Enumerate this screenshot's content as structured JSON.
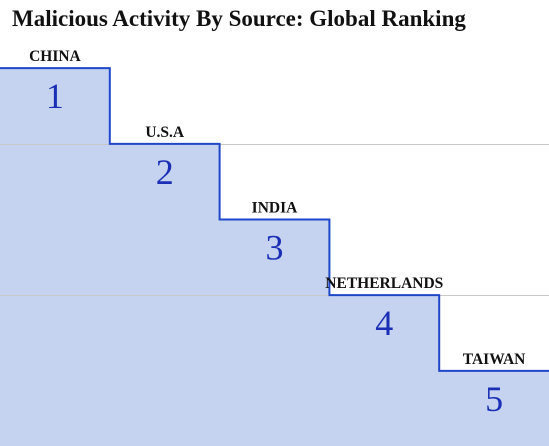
{
  "chart_data": {
    "type": "area",
    "title": "Malicious Activity By Source: Global Ranking",
    "categories": [
      "CHINA",
      "U.S.A",
      "INDIA",
      "NETHERLANDS",
      "TAIWAN"
    ],
    "values": [
      1,
      2,
      3,
      4,
      5
    ],
    "ylim": [
      0,
      6
    ],
    "y_inverted": true,
    "grid": true,
    "fill_color": "#c5d3f0",
    "line_color": "#1f47c9",
    "rank_color": "#1a2fb5"
  }
}
